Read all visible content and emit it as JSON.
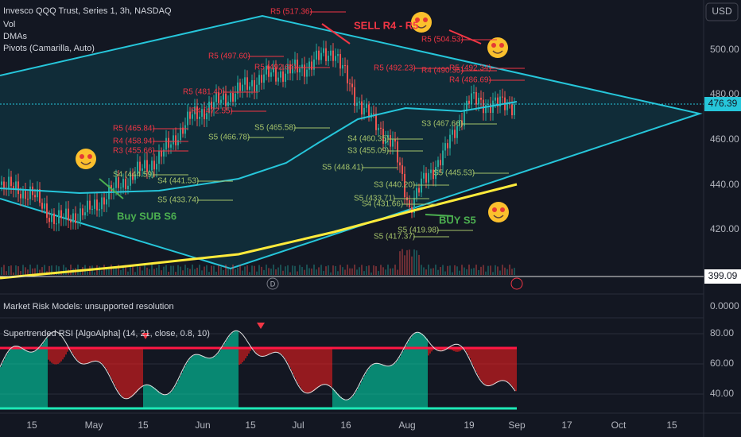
{
  "header": {
    "title": "Invesco QQQ Trust, Series 1, 3h, NASDAQ",
    "indicators": [
      "Vol",
      "DMAs",
      "Pivots (Camarilla, Auto)"
    ],
    "currency": "USD"
  },
  "price_axis": {
    "ticks": [
      "500.00",
      "480.00",
      "460.00",
      "440.00",
      "420.00"
    ],
    "last_price": "476.39",
    "marker_price": "399.09"
  },
  "annotations": [
    "SELL R4 - R5",
    "Buy SUB S6",
    "BUY S5"
  ],
  "pivots": [
    "R5 (517.36)",
    "R5 (497.60)",
    "R5 (481.40)",
    "R5 (465.84)",
    "R4 (458.94)",
    "R3 (455.66)",
    "S4 (444.59)",
    "S4 (441.53)",
    "S5 (433.74)",
    "S5 (465.58)",
    "R5 (492.64)",
    "R5 (492.23)",
    "S4 (460.35)",
    "S3 (455.09)",
    "S5 (448.41)",
    "S3 (440.20)",
    "S5 (433.71)",
    "S4 (431.66)",
    "S5 (419.98)",
    "S5 (417.37)",
    "R5 (504.53)",
    "R5 (492.34)",
    "R4 (490.35)",
    "R4 (486.69)",
    "S5 (445.53)",
    "S3 (467.66)",
    "R4 (472.55)",
    "S5 (466.78)"
  ],
  "markers": {
    "dividend": "D"
  },
  "panels": {
    "risk": {
      "title": "Market Risk Models: unsupported resolution",
      "value": "0.0000"
    },
    "rsi": {
      "title": "Supertrended RSI [AlgoAlpha] (14, 21, close, 0.8, 10)",
      "ticks": [
        "80.00",
        "60.00",
        "40.00"
      ]
    }
  },
  "time_axis": [
    "15",
    "May",
    "15",
    "Jun",
    "15",
    "Jul",
    "16",
    "Aug",
    "19",
    "Sep",
    "17",
    "Oct",
    "15"
  ]
}
